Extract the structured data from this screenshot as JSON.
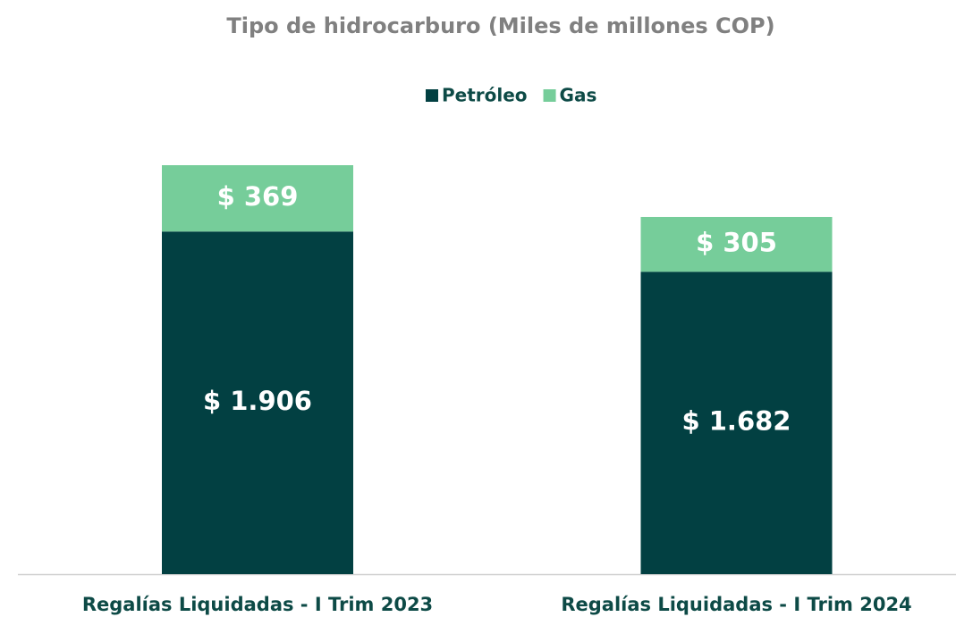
{
  "chart_data": {
    "type": "stacked_bar",
    "title": "Tipo de hidrocarburo (Miles de millones COP)",
    "categories": [
      "Regalías Liquidadas - I Trim 2023",
      "Regalías Liquidadas - I Trim 2024"
    ],
    "series": [
      {
        "name": "Petróleo",
        "color": "#024042",
        "values": [
          1906,
          1682
        ],
        "value_labels": [
          "$ 1.906",
          "$ 1.682"
        ]
      },
      {
        "name": "Gas",
        "color": "#76cd9a",
        "values": [
          369,
          305
        ],
        "value_labels": [
          "$ 369",
          "$ 305"
        ]
      }
    ],
    "legend": "top"
  }
}
